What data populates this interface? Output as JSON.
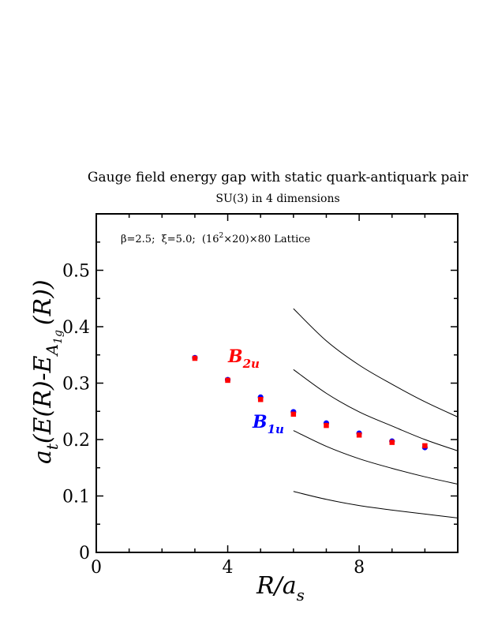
{
  "chart_data": {
    "type": "scatter",
    "title": "Gauge field energy gap with static quark-antiquark pair",
    "subtitle": "SU(3) in 4 dimensions",
    "annotation": {
      "beta": "β=2.5;",
      "xi": "ξ=5.0;",
      "lattice_open": "(16",
      "lattice_sup": "2",
      "lattice_rest": "×20)×80 Lattice"
    },
    "xlabel": {
      "main": "R/a",
      "sub": "s"
    },
    "ylabel": {
      "lead": "a",
      "lead_sub": "t",
      "main": "(E(R)-E",
      "main_sub": "A",
      "main_subsub": "1g",
      "tail": "(R))"
    },
    "xlim": [
      0,
      11
    ],
    "ylim": [
      0,
      0.6
    ],
    "xticks": [
      0,
      4,
      8
    ],
    "yticks": [
      0,
      0.1,
      0.2,
      0.3,
      0.4,
      0.5
    ],
    "xtick_labels": [
      "0",
      "4",
      "8"
    ],
    "ytick_labels": [
      "0",
      "0.1",
      "0.2",
      "0.3",
      "0.4",
      "0.5"
    ],
    "grid": false,
    "colors": {
      "B1u": "#0000ff",
      "B2u": "#ff0000",
      "curves": "#000000"
    },
    "series": [
      {
        "name": "B1u",
        "label_main": "B",
        "label_sub": "1u",
        "color": "#0000ff",
        "x": [
          3,
          4,
          5,
          6,
          7,
          8,
          9,
          10
        ],
        "y": [
          0.345,
          0.306,
          0.275,
          0.249,
          0.229,
          0.211,
          0.197,
          0.186
        ]
      },
      {
        "name": "B2u",
        "label_main": "B",
        "label_sub": "2u",
        "color": "#ff0000",
        "x": [
          3,
          4,
          5,
          6,
          7,
          8,
          9,
          10
        ],
        "y": [
          0.344,
          0.305,
          0.271,
          0.245,
          0.225,
          0.208,
          0.195,
          0.189
        ]
      }
    ],
    "curves": [
      {
        "x": [
          6,
          7,
          8,
          9,
          10,
          11
        ],
        "y": [
          0.108,
          0.094,
          0.083,
          0.075,
          0.068,
          0.061
        ]
      },
      {
        "x": [
          6,
          7,
          8,
          9,
          10,
          11
        ],
        "y": [
          0.216,
          0.188,
          0.166,
          0.149,
          0.134,
          0.121
        ]
      },
      {
        "x": [
          6,
          7,
          8,
          9,
          10,
          11
        ],
        "y": [
          0.324,
          0.282,
          0.249,
          0.224,
          0.2,
          0.18
        ]
      },
      {
        "x": [
          6,
          7,
          8,
          9,
          10,
          11
        ],
        "y": [
          0.432,
          0.375,
          0.332,
          0.298,
          0.267,
          0.24
        ]
      }
    ]
  }
}
